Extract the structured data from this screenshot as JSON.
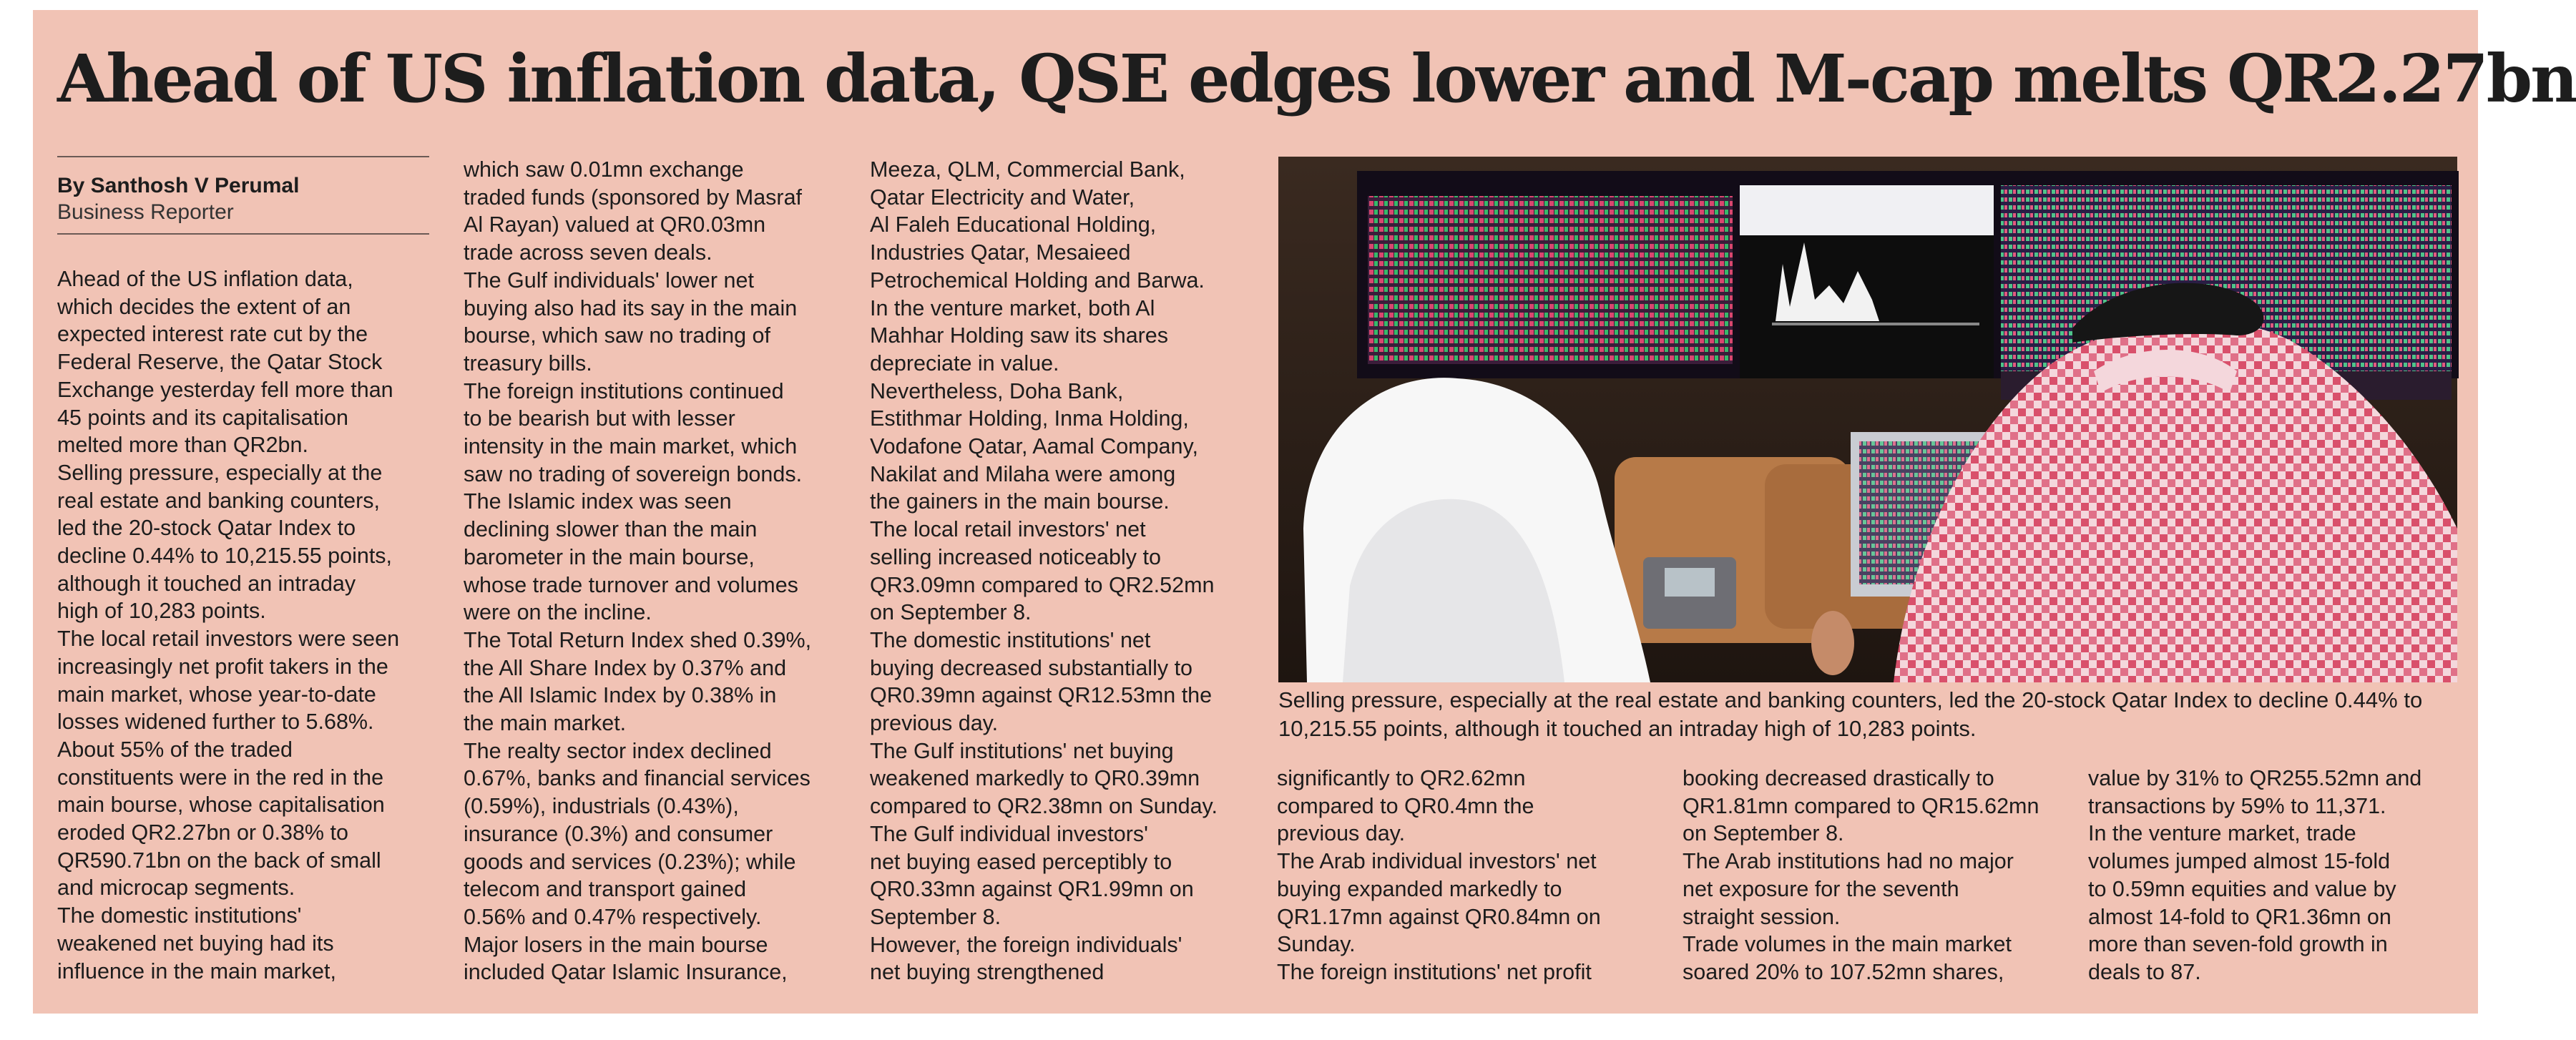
{
  "headline": "Ahead of US inflation data, QSE edges lower and M-cap melts QR2.27bn",
  "byline": {
    "author": "By Santhosh V Perumal",
    "role": "Business Reporter"
  },
  "columns": [
    [
      "Ahead of the US inflation data,\nwhich decides the extent of an\nexpected interest rate cut by the\nFederal Reserve, the Qatar Stock\nExchange yesterday fell more than\n45 points and its capitalisation\nmelted more than QR2bn.",
      "Selling pressure, especially at the\nreal estate and banking counters,\nled the 20-stock Qatar Index to\ndecline 0.44% to 10,215.55 points,\nalthough it touched an intraday\nhigh of 10,283 points.",
      "The local retail investors were seen\nincreasingly net profit takers in the\nmain market, whose year-to-date\nlosses widened further to 5.68%.",
      "About 55% of the traded\nconstituents were in the red in the\nmain bourse, whose capitalisation\neroded QR2.27bn or 0.38% to\nQR590.71bn on the back of small\nand microcap segments.",
      "The domestic institutions'\nweakened net buying had its\ninfluence in the main market,"
    ],
    [
      "which saw 0.01mn exchange\ntraded funds (sponsored by Masraf\nAl Rayan) valued at QR0.03mn\ntrade across seven deals.",
      "The Gulf individuals' lower net\nbuying also had its say in the main\nbourse, which saw no trading of\ntreasury bills.",
      "The foreign institutions continued\nto be bearish but with lesser\nintensity in the main market, which\nsaw no trading of sovereign bonds.",
      "The Islamic index was seen\ndeclining slower than the main\nbarometer in the main bourse,\nwhose trade turnover and volumes\nwere on the incline.",
      "The Total Return Index shed 0.39%,\nthe All Share Index by 0.37% and\nthe All Islamic Index by 0.38% in\nthe main market.",
      "The realty sector index declined\n0.67%, banks and financial services\n(0.59%), industrials (0.43%),\ninsurance (0.3%) and consumer\ngoods and services (0.23%); while\ntelecom and transport gained\n0.56% and 0.47% respectively.",
      "Major losers in the main bourse\nincluded Qatar Islamic Insurance,"
    ],
    [
      "Meeza, QLM, Commercial Bank,\nQatar Electricity and Water,\nAl Faleh Educational Holding,\nIndustries Qatar, Mesaieed\nPetrochemical Holding and Barwa.",
      "In the venture market, both Al\nMahhar Holding saw its shares\ndepreciate in value.",
      "Nevertheless, Doha Bank,\nEstithmar Holding, Inma Holding,\nVodafone Qatar, Aamal Company,\nNakilat and Milaha were among\nthe gainers in the main bourse.",
      "The local retail investors' net\nselling increased noticeably to\nQR3.09mn compared to QR2.52mn\non September 8.",
      "The domestic institutions' net\nbuying decreased substantially to\nQR0.39mn against QR12.53mn the\nprevious day.",
      "The Gulf institutions' net buying\nweakened markedly to QR0.39mn\ncompared to QR2.38mn on Sunday.",
      "The Gulf individual investors'\nnet buying eased perceptibly to\nQR0.33mn against QR1.99mn on\nSeptember 8.",
      "However, the foreign individuals'\nnet buying strengthened"
    ],
    [
      "significantly to QR2.62mn\ncompared to QR0.4mn the\nprevious day.",
      "The Arab individual investors' net\nbuying expanded markedly to\nQR1.17mn against QR0.84mn on\nSunday.",
      "The foreign institutions' net profit"
    ],
    [
      "booking decreased drastically to\nQR1.81mn compared to QR15.62mn\non September 8.",
      "The Arab institutions had no major\nnet exposure for the seventh\nstraight session.",
      "Trade volumes in the main market\nsoared 20% to 107.52mn shares,"
    ],
    [
      "value by 31% to QR255.52mn and\ntransactions by 59% to 11,371.",
      "In the venture market, trade\nvolumes jumped almost 15-fold\nto 0.59mn equities and value by\nalmost 14-fold to QR1.36mn on\nmore than seven-fold growth in\ndeals to 87."
    ]
  ],
  "caption": "Selling pressure, especially at the real estate and banking counters, led the 20-stock Qatar Index to decline 0.44% to 10,215.55 points, although it touched an intraday high of 10,283 points."
}
